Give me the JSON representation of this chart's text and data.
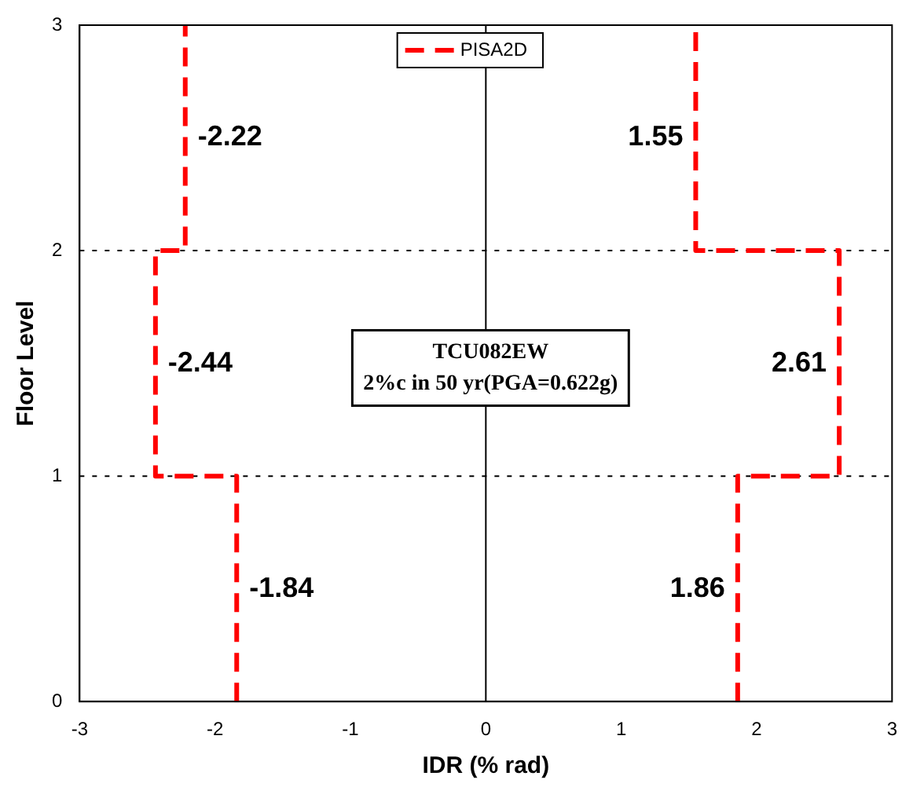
{
  "chart_data": {
    "type": "line",
    "xlabel": "IDR (% rad)",
    "ylabel": "Floor Level",
    "series": [
      {
        "name": "PISA2D",
        "color": "#ff0000",
        "x": [
          -1.84,
          -1.84,
          -2.44,
          -2.44,
          -2.22,
          -2.22
        ],
        "values": [
          0,
          1,
          1,
          2,
          2,
          3
        ]
      },
      {
        "color": "#ff0000",
        "x": [
          1.86,
          1.86,
          2.61,
          2.61,
          1.55,
          1.55
        ],
        "values": [
          0,
          1,
          1,
          2,
          2,
          3
        ]
      }
    ],
    "line_style": "dashed",
    "marker": "none",
    "xlim": [
      -3,
      3
    ],
    "xticks": [
      -3,
      -2,
      -1,
      0,
      1,
      2,
      3
    ],
    "ylim": [
      0,
      3
    ],
    "yticks": [
      0,
      1,
      2,
      3
    ],
    "grid": "y",
    "legend": "top",
    "ref_lines": [
      {
        "axis": "x",
        "value": 0,
        "color": "#000000"
      }
    ],
    "annotations": [
      {
        "text": "-2.22",
        "x": -2.22,
        "y": 2.5
      },
      {
        "text": "-2.44",
        "x": -2.44,
        "y": 1.5
      },
      {
        "text": "-1.84",
        "x": -1.84,
        "y": 0.5
      },
      {
        "text": "1.55",
        "x": 1.55,
        "y": 2.5
      },
      {
        "text": "2.61",
        "x": 2.61,
        "y": 1.5
      },
      {
        "text": "1.86",
        "x": 1.86,
        "y": 0.5
      },
      "TCU082EW",
      "2%c in 50 yr(PGA=0.622g)"
    ]
  }
}
